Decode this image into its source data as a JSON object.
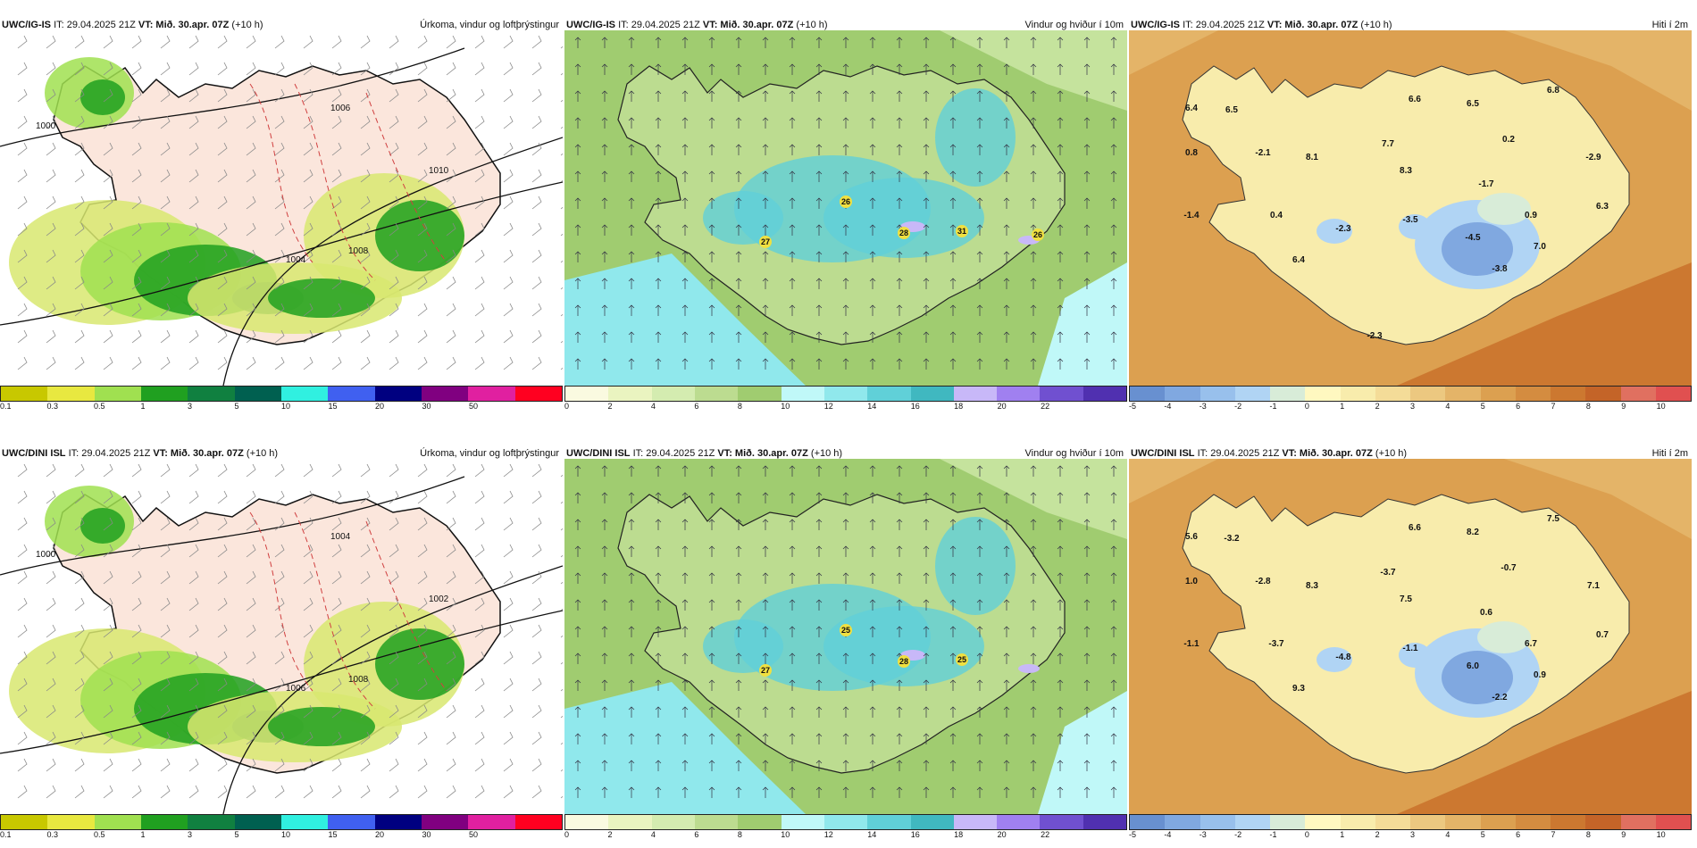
{
  "panels": [
    {
      "id": "p1",
      "model": "UWC/IG-IS",
      "it": "IT: 29.04.2025 21Z",
      "vt": "VT: Mið. 30.apr. 07Z",
      "lead": "(+10 h)",
      "title": "Úrkoma, vindur og loftþrýstingur",
      "legend_colors": [
        "#c8c800",
        "#e8e840",
        "#a0e050",
        "#20a020",
        "#108040",
        "#006050",
        "#30f0e0",
        "#4060f0",
        "#000080",
        "#800080",
        "#e020a0",
        "#ff0020"
      ],
      "legend_ticks": [
        "0.1",
        "0.3",
        "0.5",
        "1",
        "3",
        "5",
        "10",
        "15",
        "20",
        "30",
        "50",
        ""
      ],
      "map_labels": [
        "1000",
        "1006",
        "1004",
        "1008",
        "1010"
      ]
    },
    {
      "id": "p2",
      "model": "UWC/IG-IS",
      "it": "IT: 29.04.2025 21Z",
      "vt": "VT: Mið. 30.apr. 07Z",
      "lead": "(+10 h)",
      "title": "Vindur og hviður í 10m",
      "legend_colors": [
        "#fafae0",
        "#eaf4c0",
        "#d4ecb0",
        "#bcdc90",
        "#a0cc70",
        "#c0f8f8",
        "#90e8ec",
        "#60d0d8",
        "#40b8c0",
        "#c8b8f8",
        "#a080f0",
        "#7050d0",
        "#5030b0"
      ],
      "legend_ticks": [
        "0",
        "2",
        "4",
        "6",
        "8",
        "10",
        "12",
        "14",
        "16",
        "18",
        "20",
        "22",
        ""
      ],
      "map_labels": [
        "27",
        "26",
        "28",
        "31",
        "26"
      ]
    },
    {
      "id": "p3",
      "model": "UWC/IG-IS",
      "it": "IT: 29.04.2025 21Z",
      "vt": "VT: Mið. 30.apr. 07Z",
      "lead": "(+10 h)",
      "title": "Hiti í 2m",
      "legend_colors": [
        "#6890d0",
        "#80a8e0",
        "#98c0ec",
        "#b0d4f4",
        "#d8ecd8",
        "#fff8c0",
        "#f8ecac",
        "#f4dc98",
        "#ecc880",
        "#e4b468",
        "#dca050",
        "#d48c40",
        "#cc7830",
        "#c46428",
        "#e07060",
        "#e05050"
      ],
      "legend_ticks": [
        "-5",
        "-4",
        "-3",
        "-2",
        "-1",
        "0",
        "1",
        "2",
        "3",
        "4",
        "5",
        "6",
        "7",
        "8",
        "9",
        "10"
      ],
      "map_labels": [
        "6.4",
        "6.5",
        "6.6",
        "6.5",
        "6.8",
        "0.8",
        "-2.1",
        "8.1",
        "7.7",
        "0.2",
        "-2.9",
        "8.3",
        "-1.7",
        "-1.4",
        "0.4",
        "-2.3",
        "-3.5",
        "0.9",
        "6.3",
        "-4.5",
        "7.0",
        "6.4",
        "-3.8",
        "-2.3"
      ]
    },
    {
      "id": "p4",
      "model": "UWC/DINI ISL",
      "it": "IT: 29.04.2025 21Z",
      "vt": "VT: Mið. 30.apr. 07Z",
      "lead": "(+10 h)",
      "title": "Úrkoma, vindur og loftþrýstingur",
      "legend_colors": [
        "#c8c800",
        "#e8e840",
        "#a0e050",
        "#20a020",
        "#108040",
        "#006050",
        "#30f0e0",
        "#4060f0",
        "#000080",
        "#800080",
        "#e020a0",
        "#ff0020"
      ],
      "legend_ticks": [
        "0.1",
        "0.3",
        "0.5",
        "1",
        "3",
        "5",
        "10",
        "15",
        "20",
        "30",
        "50",
        ""
      ],
      "map_labels": [
        "1000",
        "1004",
        "1006",
        "1008",
        "1002"
      ]
    },
    {
      "id": "p5",
      "model": "UWC/DINI ISL",
      "it": "IT: 29.04.2025 21Z",
      "vt": "VT: Mið. 30.apr. 07Z",
      "lead": "(+10 h)",
      "title": "Vindur og hviður í 10m",
      "legend_colors": [
        "#fafae0",
        "#eaf4c0",
        "#d4ecb0",
        "#bcdc90",
        "#a0cc70",
        "#c0f8f8",
        "#90e8ec",
        "#60d0d8",
        "#40b8c0",
        "#c8b8f8",
        "#a080f0",
        "#7050d0",
        "#5030b0"
      ],
      "legend_ticks": [
        "0",
        "2",
        "4",
        "6",
        "8",
        "10",
        "12",
        "14",
        "16",
        "18",
        "20",
        "22",
        ""
      ],
      "map_labels": [
        "27",
        "25",
        "28",
        "25"
      ]
    },
    {
      "id": "p6",
      "model": "UWC/DINI ISL",
      "it": "IT: 29.04.2025 21Z",
      "vt": "VT: Mið. 30.apr. 07Z",
      "lead": "(+10 h)",
      "title": "Hiti í 2m",
      "legend_colors": [
        "#6890d0",
        "#80a8e0",
        "#98c0ec",
        "#b0d4f4",
        "#d8ecd8",
        "#fff8c0",
        "#f8ecac",
        "#f4dc98",
        "#ecc880",
        "#e4b468",
        "#dca050",
        "#d48c40",
        "#cc7830",
        "#c46428",
        "#e07060",
        "#e05050"
      ],
      "legend_ticks": [
        "-5",
        "-4",
        "-3",
        "-2",
        "-1",
        "0",
        "1",
        "2",
        "3",
        "4",
        "5",
        "6",
        "7",
        "8",
        "9",
        "10"
      ],
      "map_labels": [
        "5.6",
        "-3.2",
        "6.6",
        "8.2",
        "7.5",
        "1.0",
        "-2.8",
        "8.3",
        "-3.7",
        "-0.7",
        "7.1",
        "7.5",
        "0.6",
        "-1.1",
        "-3.7",
        "-4.8",
        "-1.1",
        "6.7",
        "0.7",
        "6.0",
        "0.9",
        "9.3",
        "-2.2"
      ]
    }
  ]
}
